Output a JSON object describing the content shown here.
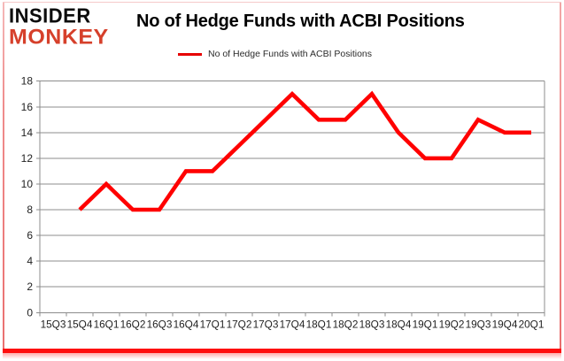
{
  "logo": {
    "line1": "INSIDER",
    "line2": "MONKEY"
  },
  "header": {
    "title": "No of Hedge Funds with ACBI Positions"
  },
  "legend": {
    "label": "No of Hedge Funds with ACBI Positions"
  },
  "colors": {
    "series_red": "#ff0000",
    "grid_gray": "#8c8c8c",
    "axis_text": "#1f1f1f",
    "frame_red": "#fe0d0d",
    "logo_red": "#d6402b"
  },
  "chart_data": {
    "type": "line",
    "title": "No of Hedge Funds with ACBI Positions",
    "categories": [
      "15Q3",
      "15Q4",
      "16Q1",
      "16Q2",
      "16Q3",
      "16Q4",
      "17Q1",
      "17Q2",
      "17Q3",
      "17Q4",
      "18Q1",
      "18Q2",
      "18Q3",
      "18Q4",
      "19Q1",
      "19Q2",
      "19Q3",
      "19Q4",
      "20Q1"
    ],
    "series": [
      {
        "name": "No of Hedge Funds with ACBI Positions",
        "color": "#ff0000",
        "values": [
          null,
          8,
          10,
          8,
          8,
          11,
          11,
          13,
          15,
          17,
          15,
          15,
          17,
          14,
          12,
          12,
          15,
          14,
          14
        ]
      }
    ],
    "xlabel": "",
    "ylabel": "",
    "ylim": [
      0,
      18
    ],
    "ytick_step": 2,
    "grid": true,
    "legend_position": "top-center"
  }
}
